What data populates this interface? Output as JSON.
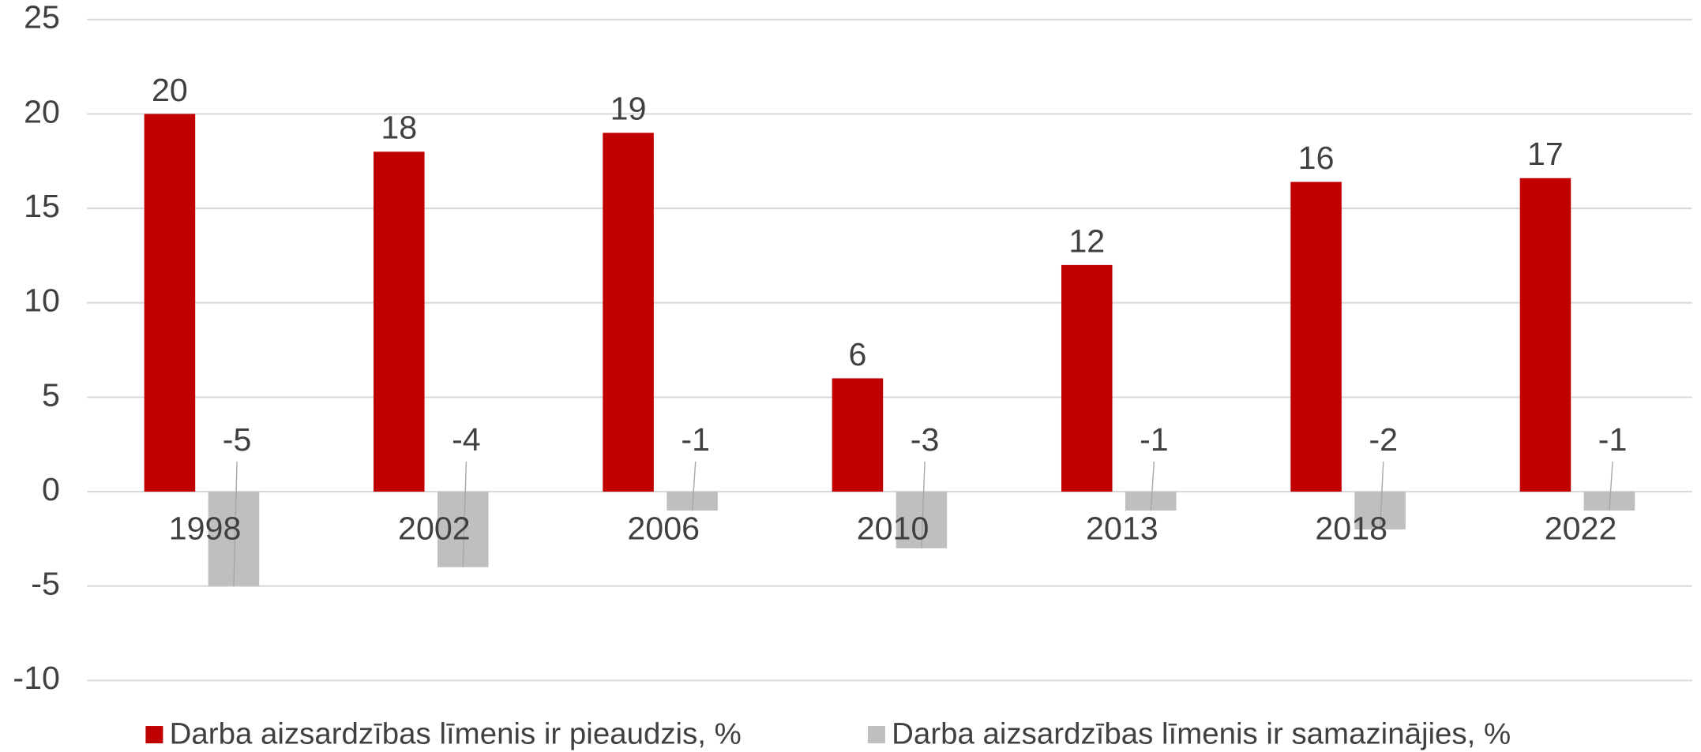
{
  "chart_data": {
    "type": "bar",
    "categories": [
      "1998",
      "2002",
      "2006",
      "2010",
      "2013",
      "2018",
      "2022"
    ],
    "series": [
      {
        "name": "Darba aizsardzības līmenis ir pieaudzis, %",
        "color": "#c00000",
        "values": [
          20,
          18,
          19,
          6,
          12,
          16.4,
          16.6
        ],
        "value_labels": [
          "20",
          "18",
          "19",
          "6",
          "12",
          "16",
          "17"
        ]
      },
      {
        "name": "Darba aizsardzības līmenis ir samazinājies, %",
        "color": "#bfbfbf",
        "values": [
          -5,
          -4,
          -1,
          -3,
          -1,
          -2,
          -1
        ]
      }
    ],
    "ylim": [
      -10,
      25
    ],
    "yticks": [
      -10,
      -5,
      0,
      5,
      10,
      15,
      20,
      25
    ],
    "grid": true,
    "legend": "bottom"
  }
}
